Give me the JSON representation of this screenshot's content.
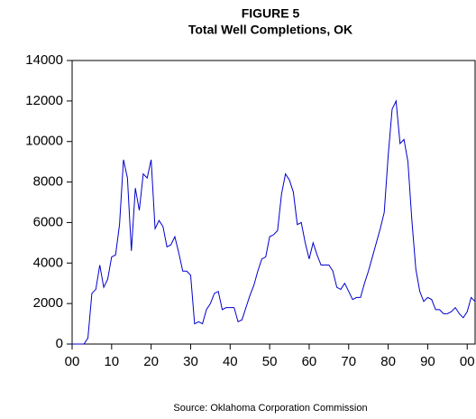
{
  "chart_data": {
    "type": "line",
    "title": "FIGURE 5",
    "subtitle": "Total Well Completions, OK",
    "source": "Source: Oklahoma Corporation Commission",
    "x": [
      0,
      1,
      2,
      3,
      4,
      5,
      6,
      7,
      8,
      9,
      10,
      11,
      12,
      13,
      14,
      15,
      16,
      17,
      18,
      19,
      20,
      21,
      22,
      23,
      24,
      25,
      26,
      27,
      28,
      29,
      30,
      31,
      32,
      33,
      34,
      35,
      36,
      37,
      38,
      39,
      40,
      41,
      42,
      43,
      44,
      45,
      46,
      47,
      48,
      49,
      50,
      51,
      52,
      53,
      54,
      55,
      56,
      57,
      58,
      59,
      60,
      61,
      62,
      63,
      64,
      65,
      66,
      67,
      68,
      69,
      70,
      71,
      72,
      73,
      74,
      75,
      76,
      77,
      78,
      79,
      80,
      81,
      82,
      83,
      84,
      85,
      86,
      87,
      88,
      89,
      90,
      91,
      92,
      93,
      94,
      95,
      96,
      97,
      98,
      99,
      100,
      101,
      102
    ],
    "series": [
      {
        "name": "Total Well Completions",
        "color": "#0000cc",
        "values": [
          0,
          0,
          0,
          0,
          300,
          2500,
          2700,
          3900,
          2800,
          3200,
          4300,
          4400,
          5900,
          9100,
          8200,
          4600,
          7700,
          6600,
          8400,
          8200,
          9100,
          5700,
          6100,
          5800,
          4800,
          4900,
          5300,
          4500,
          3600,
          3600,
          3400,
          1000,
          1100,
          1000,
          1700,
          2000,
          2500,
          2600,
          1700,
          1800,
          1800,
          1800,
          1100,
          1200,
          1800,
          2400,
          2900,
          3600,
          4200,
          4300,
          5300,
          5400,
          5600,
          7400,
          8400,
          8100,
          7500,
          5900,
          6000,
          5000,
          4200,
          5000,
          4400,
          3900,
          3900,
          3900,
          3600,
          2800,
          2700,
          3000,
          2600,
          2200,
          2300,
          2300,
          3000,
          3600,
          4300,
          5000,
          5700,
          6500,
          9300,
          11600,
          12000,
          9900,
          10100,
          9000,
          6100,
          3700,
          2600,
          2100,
          2300,
          2200,
          1700,
          1700,
          1500,
          1500,
          1600,
          1800,
          1500,
          1300,
          1600,
          2300,
          2100
        ]
      }
    ],
    "xlim": [
      0,
      102
    ],
    "xticks": [
      {
        "value": 0,
        "label": "00"
      },
      10,
      20,
      30,
      40,
      50,
      60,
      70,
      80,
      90,
      {
        "value": 100,
        "label": "00"
      }
    ],
    "ylim": [
      0,
      14000
    ],
    "yticks": [
      0,
      2000,
      4000,
      6000,
      8000,
      10000,
      12000,
      14000
    ],
    "grid": false
  }
}
